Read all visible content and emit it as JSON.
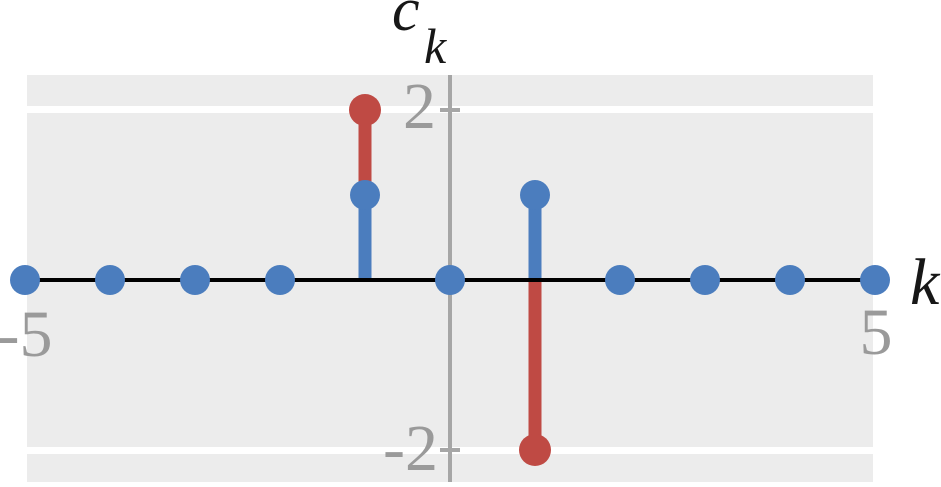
{
  "title": {
    "base": "c",
    "subscript": "k"
  },
  "x_axis_label": "k",
  "axis_ticks": {
    "y_top": "2",
    "y_bottom": "-2",
    "x_left": "-5",
    "x_right": "5"
  },
  "colors": {
    "plot_bg": "#ececec",
    "gridline": "#ffffff",
    "y_axis": "#a6a6a6",
    "x_axis": "#000000",
    "tick_label": "#9a9a9a",
    "blue": "#4b7dbe",
    "red": "#bf4a44"
  },
  "chart_data": {
    "type": "stem",
    "title": "c_k",
    "xlabel": "k",
    "ylabel": "c_k",
    "x_range": [
      -5,
      5
    ],
    "ylim": [
      -2.4,
      2.4
    ],
    "y_tick_values": [
      2,
      -2
    ],
    "x_tick_values": [
      -5,
      5
    ],
    "grid": "horizontal gridlines at y = 2 and y = -2",
    "legend": "none",
    "series": [
      {
        "name": "red-series",
        "color": "#bf4a44",
        "points": [
          {
            "x": -1,
            "y": 2,
            "stem_from": 1
          },
          {
            "x": 1,
            "y": -2,
            "stem_from": 0
          }
        ]
      },
      {
        "name": "blue-series",
        "color": "#4b7dbe",
        "points": [
          {
            "x": -5,
            "y": 0
          },
          {
            "x": -4,
            "y": 0
          },
          {
            "x": -3,
            "y": 0
          },
          {
            "x": -2,
            "y": 0
          },
          {
            "x": -1,
            "y": 1
          },
          {
            "x": 0,
            "y": 0
          },
          {
            "x": 1,
            "y": 1
          },
          {
            "x": 2,
            "y": 0
          },
          {
            "x": 3,
            "y": 0
          },
          {
            "x": 4,
            "y": 0
          },
          {
            "x": 5,
            "y": 0
          }
        ]
      }
    ]
  }
}
